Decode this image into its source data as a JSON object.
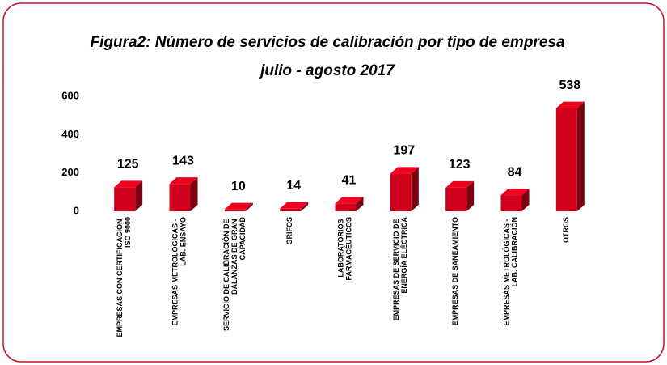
{
  "chart_data": {
    "type": "bar",
    "title": "Figura2: Número de servicios de calibración por tipo de empresa",
    "subtitle": "julio - agosto  2017",
    "categories": [
      "EMPRESAS CON CERTIFICACIÓN\nISO 9000",
      "EMPRESAS METROLÓGICAS -\nLAB. ENSAYO",
      "SERVICIO DE CALIBRACIÓN DE\nBALANZAS DE GRAN\nCAPACIDAD",
      "GRIFOS",
      "LABORATORIOS\nFARMACÉUTICOS",
      "EMPRESAS DE SERVICIO DE\nENERGÍA ELÉCTRICA",
      "EMPRESAS DE SANEAMIENTO",
      "EMPRESAS METROLÓGICAS -\nLAB. CALIBRACIÓN",
      "OTROS"
    ],
    "values": [
      125,
      143,
      10,
      14,
      41,
      197,
      123,
      84,
      538
    ],
    "color": "#d0021b",
    "ylim": [
      0,
      600
    ],
    "yticks": [
      0,
      200,
      400,
      600
    ],
    "grid": false
  }
}
